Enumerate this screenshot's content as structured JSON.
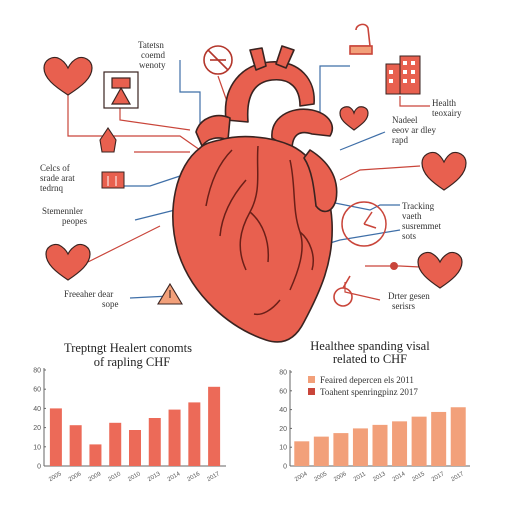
{
  "colors": {
    "heart": "#e8604f",
    "heart_dark": "#b3362b",
    "line_red": "#c9453a",
    "line_blue": "#3f6fa8",
    "bar_left": "#ec6a58",
    "bar_right": "#f2a07a"
  },
  "icons": [
    "heart-icon",
    "no-entry-icon",
    "hospital-building-icon",
    "hand-icon",
    "warning-triangle-icon",
    "clock-icon",
    "thermometer-icon",
    "calendar-icon"
  ],
  "labels": {
    "top_center": [
      "Tatetsn",
      "coemd",
      "wenoty"
    ],
    "right_top": [
      "Health",
      "teoxairy"
    ],
    "right_mid": [
      "Nadeel",
      "eeov ar dley",
      "rapd"
    ],
    "left_mid": [
      "Celcs of",
      "srade arat",
      "tedrnq"
    ],
    "right_tracking": [
      "Tracking",
      "vaeth",
      "susremmet",
      "sots"
    ],
    "left_lower": [
      "Stemennler",
      "peopes"
    ],
    "left_bottom": [
      "Freeaher dear",
      "sope"
    ],
    "right_bottom": [
      "Drter gesen",
      "serisrs"
    ]
  },
  "left_chart": {
    "title_line1": "Treptngt Healert conomts",
    "title_line2": "of rapling CHF"
  },
  "right_chart": {
    "title_line1": "Healthee spanding visal",
    "title_line2": "related to CHF",
    "legend": [
      "Feaired depercen els 2011",
      "Toahent spenringpinz 2017"
    ]
  },
  "chart_data": [
    {
      "type": "bar",
      "title": "Treptngt Healert conomts of rapling CHF",
      "categories": [
        "2005",
        "2006",
        "2009",
        "2010",
        "2010",
        "2013",
        "2014",
        "2016",
        "2017"
      ],
      "values": [
        48,
        34,
        18,
        36,
        30,
        40,
        47,
        53,
        66
      ],
      "yticks": [
        0,
        10,
        20,
        40,
        60,
        80
      ],
      "ylim": [
        0,
        80
      ],
      "xlabel": "",
      "ylabel": ""
    },
    {
      "type": "bar",
      "title": "Healthee spanding visal related to CHF",
      "categories": [
        "2004",
        "2005",
        "2006",
        "2011",
        "2013",
        "2014",
        "2015",
        "2017",
        "2017"
      ],
      "values": [
        21,
        25,
        28,
        32,
        35,
        38,
        42,
        46,
        50
      ],
      "yticks": [
        0,
        10,
        20,
        40,
        60,
        80
      ],
      "ylim": [
        0,
        80
      ],
      "legend": [
        "Feaired depercen els 2011",
        "Toahent spenringpinz 2017"
      ],
      "xlabel": "",
      "ylabel": ""
    }
  ]
}
